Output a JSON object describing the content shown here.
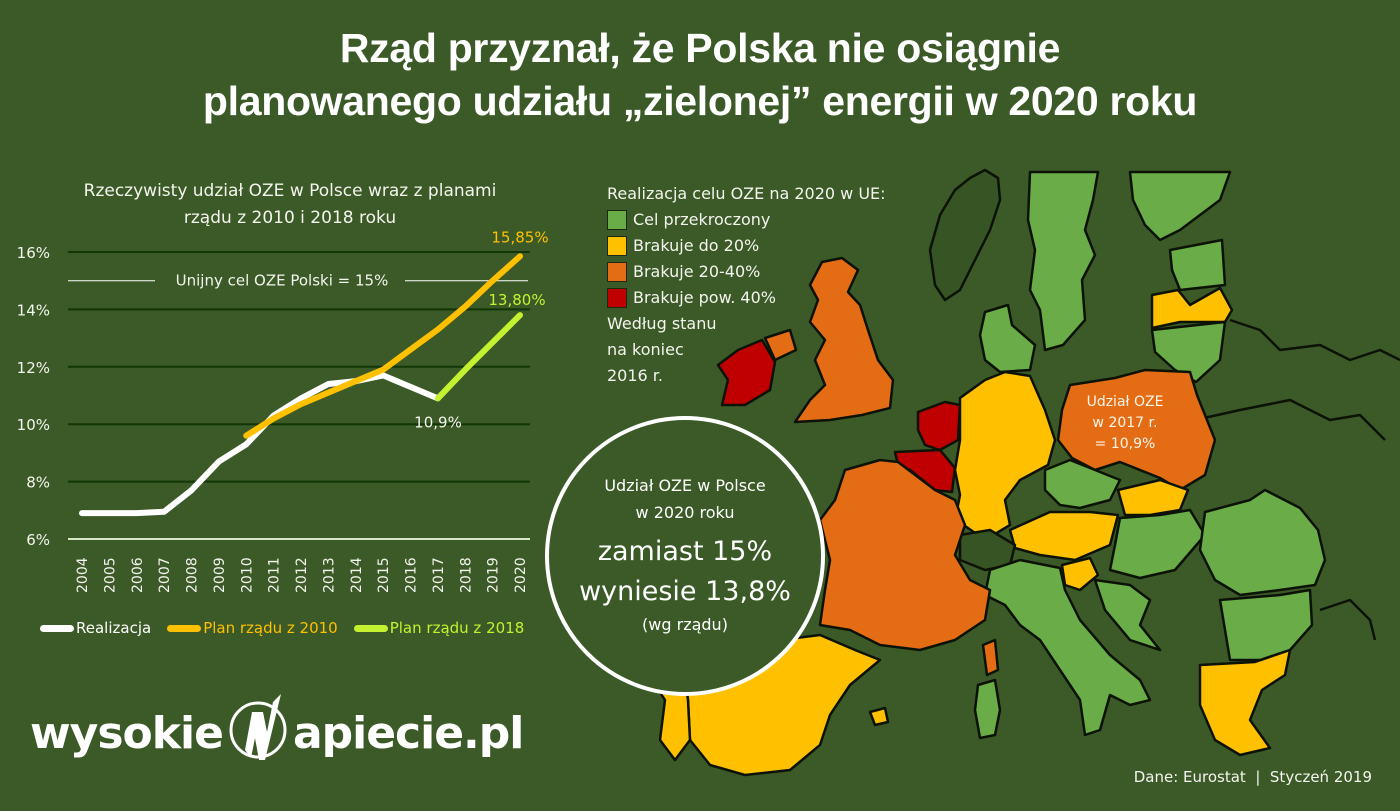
{
  "title": {
    "line1": "Rząd przyznał, że Polska nie osiągnie",
    "line2": "planowanego udziału „zielonej” energii w 2020 roku"
  },
  "chart": {
    "title_line1": "Rzeczywisty udział OZE w Polsce wraz z planami",
    "title_line2": "rządu z 2010 i 2018 roku",
    "eu_target_label": "Unijny cel OZE Polski = 15%",
    "annot_2020_plan2010": "15,85%",
    "annot_2020_plan2018": "13,80%",
    "annot_2017_actual": "10,9%",
    "yticks": [
      "16%",
      "14%",
      "12%",
      "10%",
      "8%",
      "6%"
    ],
    "years": [
      "2004",
      "2005",
      "2006",
      "2007",
      "2008",
      "2009",
      "2010",
      "2011",
      "2012",
      "2013",
      "2014",
      "2015",
      "2016",
      "2017",
      "2018",
      "2019",
      "2020"
    ],
    "legend": {
      "actual": "Realizacja",
      "plan2010": "Plan rządu z 2010",
      "plan2018": "Plan rządu z 2018"
    }
  },
  "chart_data": {
    "type": "line",
    "title": "Rzeczywisty udział OZE w Polsce wraz z planami rządu z 2010 i 2018 roku",
    "xlabel": "",
    "ylabel": "",
    "ylim": [
      6,
      16
    ],
    "yticks": [
      6,
      8,
      10,
      12,
      14,
      16
    ],
    "grid": true,
    "legend_position": "bottom",
    "x": [
      2004,
      2005,
      2006,
      2007,
      2008,
      2009,
      2010,
      2011,
      2012,
      2013,
      2014,
      2015,
      2016,
      2017,
      2018,
      2019,
      2020
    ],
    "series": [
      {
        "name": "Realizacja",
        "color": "#ffffff",
        "values": [
          6.9,
          6.9,
          6.9,
          6.95,
          7.7,
          8.7,
          9.3,
          10.3,
          10.9,
          11.4,
          11.5,
          11.7,
          11.3,
          10.9,
          null,
          null,
          null
        ]
      },
      {
        "name": "Plan rządu z 2010",
        "color": "#ffc000",
        "values": [
          null,
          null,
          null,
          null,
          null,
          null,
          9.6,
          10.2,
          10.7,
          11.1,
          11.5,
          11.9,
          12.6,
          13.3,
          14.1,
          15.0,
          15.85
        ]
      },
      {
        "name": "Plan rządu z 2018",
        "color": "#c4f230",
        "values": [
          null,
          null,
          null,
          null,
          null,
          null,
          null,
          null,
          null,
          null,
          null,
          null,
          null,
          10.9,
          11.9,
          12.85,
          13.8
        ]
      }
    ],
    "reference_lines": [
      {
        "y": 15,
        "label": "Unijny cel OZE Polski = 15%"
      }
    ],
    "annotations": [
      {
        "x": 2020,
        "y": 15.85,
        "text": "15,85%"
      },
      {
        "x": 2020,
        "y": 13.8,
        "text": "13,80%"
      },
      {
        "x": 2017,
        "y": 10.9,
        "text": "10,9%"
      }
    ]
  },
  "map": {
    "legend_title": "Realizacja celu OZE na 2020 w UE:",
    "legend": [
      {
        "label": "Cel przekroczony",
        "color": "#6aac48"
      },
      {
        "label": "Brakuje do 20%",
        "color": "#ffc000"
      },
      {
        "label": "Brakuje 20-40%",
        "color": "#e46c14"
      },
      {
        "label": "Brakuje pow. 40%",
        "color": "#c00000"
      }
    ],
    "note_line1": "Według stanu",
    "note_line2": "na koniec",
    "note_line3": "2016 r.",
    "poland_label_line1": "Udział OZE",
    "poland_label_line2": "w 2017 r.",
    "poland_label_line3": "= 10,9%"
  },
  "callout": {
    "line1": "Udział OZE w Polsce",
    "line2": "w 2020 roku",
    "line3": "zamiast 15%",
    "line4": "wyniesie 13,8%",
    "line5": "(wg rządu)"
  },
  "logo": {
    "left": "wysokie",
    "right": "apiecie.pl"
  },
  "footer": {
    "source": "Dane: Eurostat  |  Styczeń 2019"
  },
  "colors": {
    "background": "#3b5a27",
    "non_eu_land": "#375524",
    "green": "#6aac48",
    "yellow": "#ffc000",
    "orange": "#e46c14",
    "red": "#c00000",
    "plan2018": "#c4f230"
  }
}
